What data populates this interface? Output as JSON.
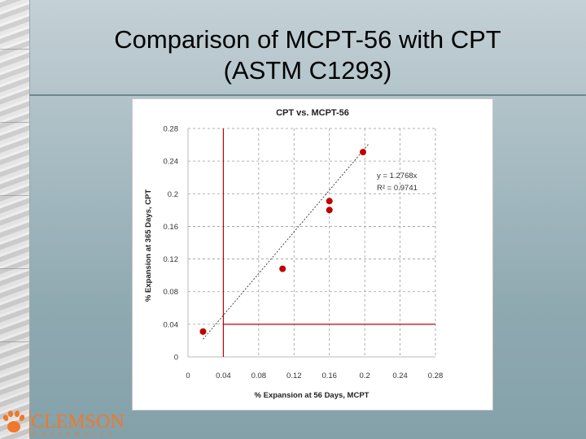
{
  "slide": {
    "title_line1": "Comparison of MCPT-56 with CPT",
    "title_line2": "(ASTM C1293)"
  },
  "logo": {
    "name": "CLEMSON",
    "sub": "UNIVERSITY",
    "color": "#f0782a"
  },
  "chart_data": {
    "type": "scatter",
    "title": "CPT vs. MCPT-56",
    "xlabel": "% Expansion at 56 Days, MCPT",
    "ylabel": "% Expansion at 365 Days, CPT",
    "xlim": [
      0,
      0.28
    ],
    "ylim": [
      0,
      0.28
    ],
    "x_ticks": [
      "0",
      "0.04",
      "0.08",
      "0.12",
      "0.16",
      "0.2",
      "0.24",
      "0.28"
    ],
    "y_ticks": [
      "0",
      "0.04",
      "0.08",
      "0.12",
      "0.16",
      "0.2",
      "0.24",
      "0.28"
    ],
    "grid": true,
    "series": [
      {
        "name": "data",
        "color": "#c00000",
        "x": [
          0.017,
          0.107,
          0.16,
          0.16,
          0.198
        ],
        "y": [
          0.031,
          0.108,
          0.191,
          0.18,
          0.251
        ]
      }
    ],
    "trendline": {
      "slope": 1.2768,
      "intercept": 0,
      "x_range": [
        0.017,
        0.205
      ],
      "equation": "y = 1.2768x",
      "r2": "R² = 0.9741"
    },
    "limit_lines": {
      "x": 0.04,
      "y": 0.04,
      "color": "#c00000"
    }
  }
}
